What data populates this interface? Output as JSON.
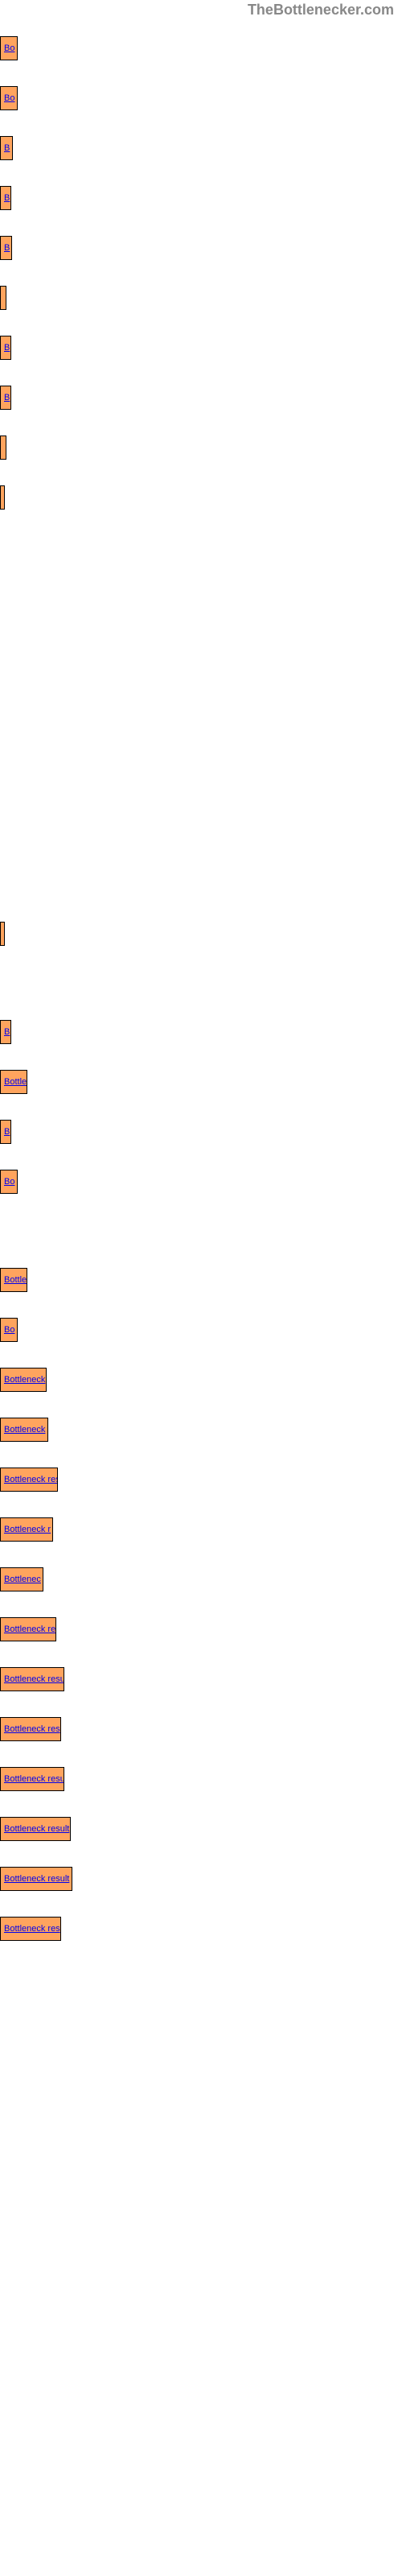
{
  "watermark": {
    "text": "TheBottlenecker.com",
    "color": "#888888"
  },
  "chart": {
    "bar_color": "#ffa45e",
    "bar_border": "#000000",
    "link_color": "#0000ee",
    "bars": [
      {
        "label": "Bo",
        "width": 22,
        "show_label_inside": true
      },
      {
        "label": "Bo",
        "width": 22,
        "show_label_inside": true
      },
      {
        "label": "B",
        "width": 16,
        "show_label_inside": true
      },
      {
        "label": "B",
        "width": 14,
        "show_label_inside": true
      },
      {
        "label": "B",
        "width": 15,
        "show_label_inside": true
      },
      {
        "label": "",
        "width": 8,
        "show_label_inside": false
      },
      {
        "label": "B",
        "width": 14,
        "show_label_inside": true
      },
      {
        "label": "B",
        "width": 14,
        "show_label_inside": true
      },
      {
        "label": "",
        "width": 8,
        "show_label_inside": false
      },
      {
        "label": "",
        "width": 6,
        "show_label_inside": false
      },
      {
        "label": "",
        "width": 0,
        "show_label_inside": false,
        "empty": true
      },
      {
        "label": "",
        "width": 0,
        "show_label_inside": false,
        "empty": true
      },
      {
        "label": "",
        "width": 0,
        "show_label_inside": false,
        "empty": true
      },
      {
        "label": "",
        "width": 0,
        "show_label_inside": false,
        "empty": true
      },
      {
        "label": "",
        "width": 0,
        "show_label_inside": false,
        "empty": true
      },
      {
        "label": "",
        "width": 0,
        "show_label_inside": false,
        "empty": true
      },
      {
        "label": "",
        "width": 0,
        "show_label_inside": false,
        "empty": true
      },
      {
        "label": "",
        "width": 0,
        "show_label_inside": false,
        "empty": true
      },
      {
        "label": "",
        "width": 6,
        "show_label_inside": false
      },
      {
        "label": "",
        "width": 0,
        "show_label_inside": false,
        "empty": true
      },
      {
        "label": "B",
        "width": 14,
        "show_label_inside": true
      },
      {
        "label": "Bottle",
        "width": 34,
        "show_label_inside": true
      },
      {
        "label": "B",
        "width": 14,
        "show_label_inside": true
      },
      {
        "label": "Bo",
        "width": 22,
        "show_label_inside": true
      },
      {
        "label": "",
        "width": 0,
        "show_label_inside": false,
        "empty": true
      },
      {
        "label": "Bottle",
        "width": 34,
        "show_label_inside": true
      },
      {
        "label": "Bo",
        "width": 22,
        "show_label_inside": true
      },
      {
        "label": "Bottleneck",
        "width": 58,
        "show_label_inside": true
      },
      {
        "label": "Bottleneck",
        "width": 60,
        "show_label_inside": true
      },
      {
        "label": "Bottleneck res",
        "width": 72,
        "show_label_inside": true
      },
      {
        "label": "Bottleneck r",
        "width": 66,
        "show_label_inside": true
      },
      {
        "label": "Bottlenec",
        "width": 54,
        "show_label_inside": true
      },
      {
        "label": "Bottleneck re",
        "width": 70,
        "show_label_inside": true
      },
      {
        "label": "Bottleneck resu",
        "width": 80,
        "show_label_inside": true
      },
      {
        "label": "Bottleneck res",
        "width": 76,
        "show_label_inside": true
      },
      {
        "label": "Bottleneck resu",
        "width": 80,
        "show_label_inside": true
      },
      {
        "label": "Bottleneck result",
        "width": 88,
        "show_label_inside": true
      },
      {
        "label": "Bottleneck result",
        "width": 90,
        "show_label_inside": true
      },
      {
        "label": "Bottleneck res",
        "width": 76,
        "show_label_inside": true
      }
    ]
  }
}
